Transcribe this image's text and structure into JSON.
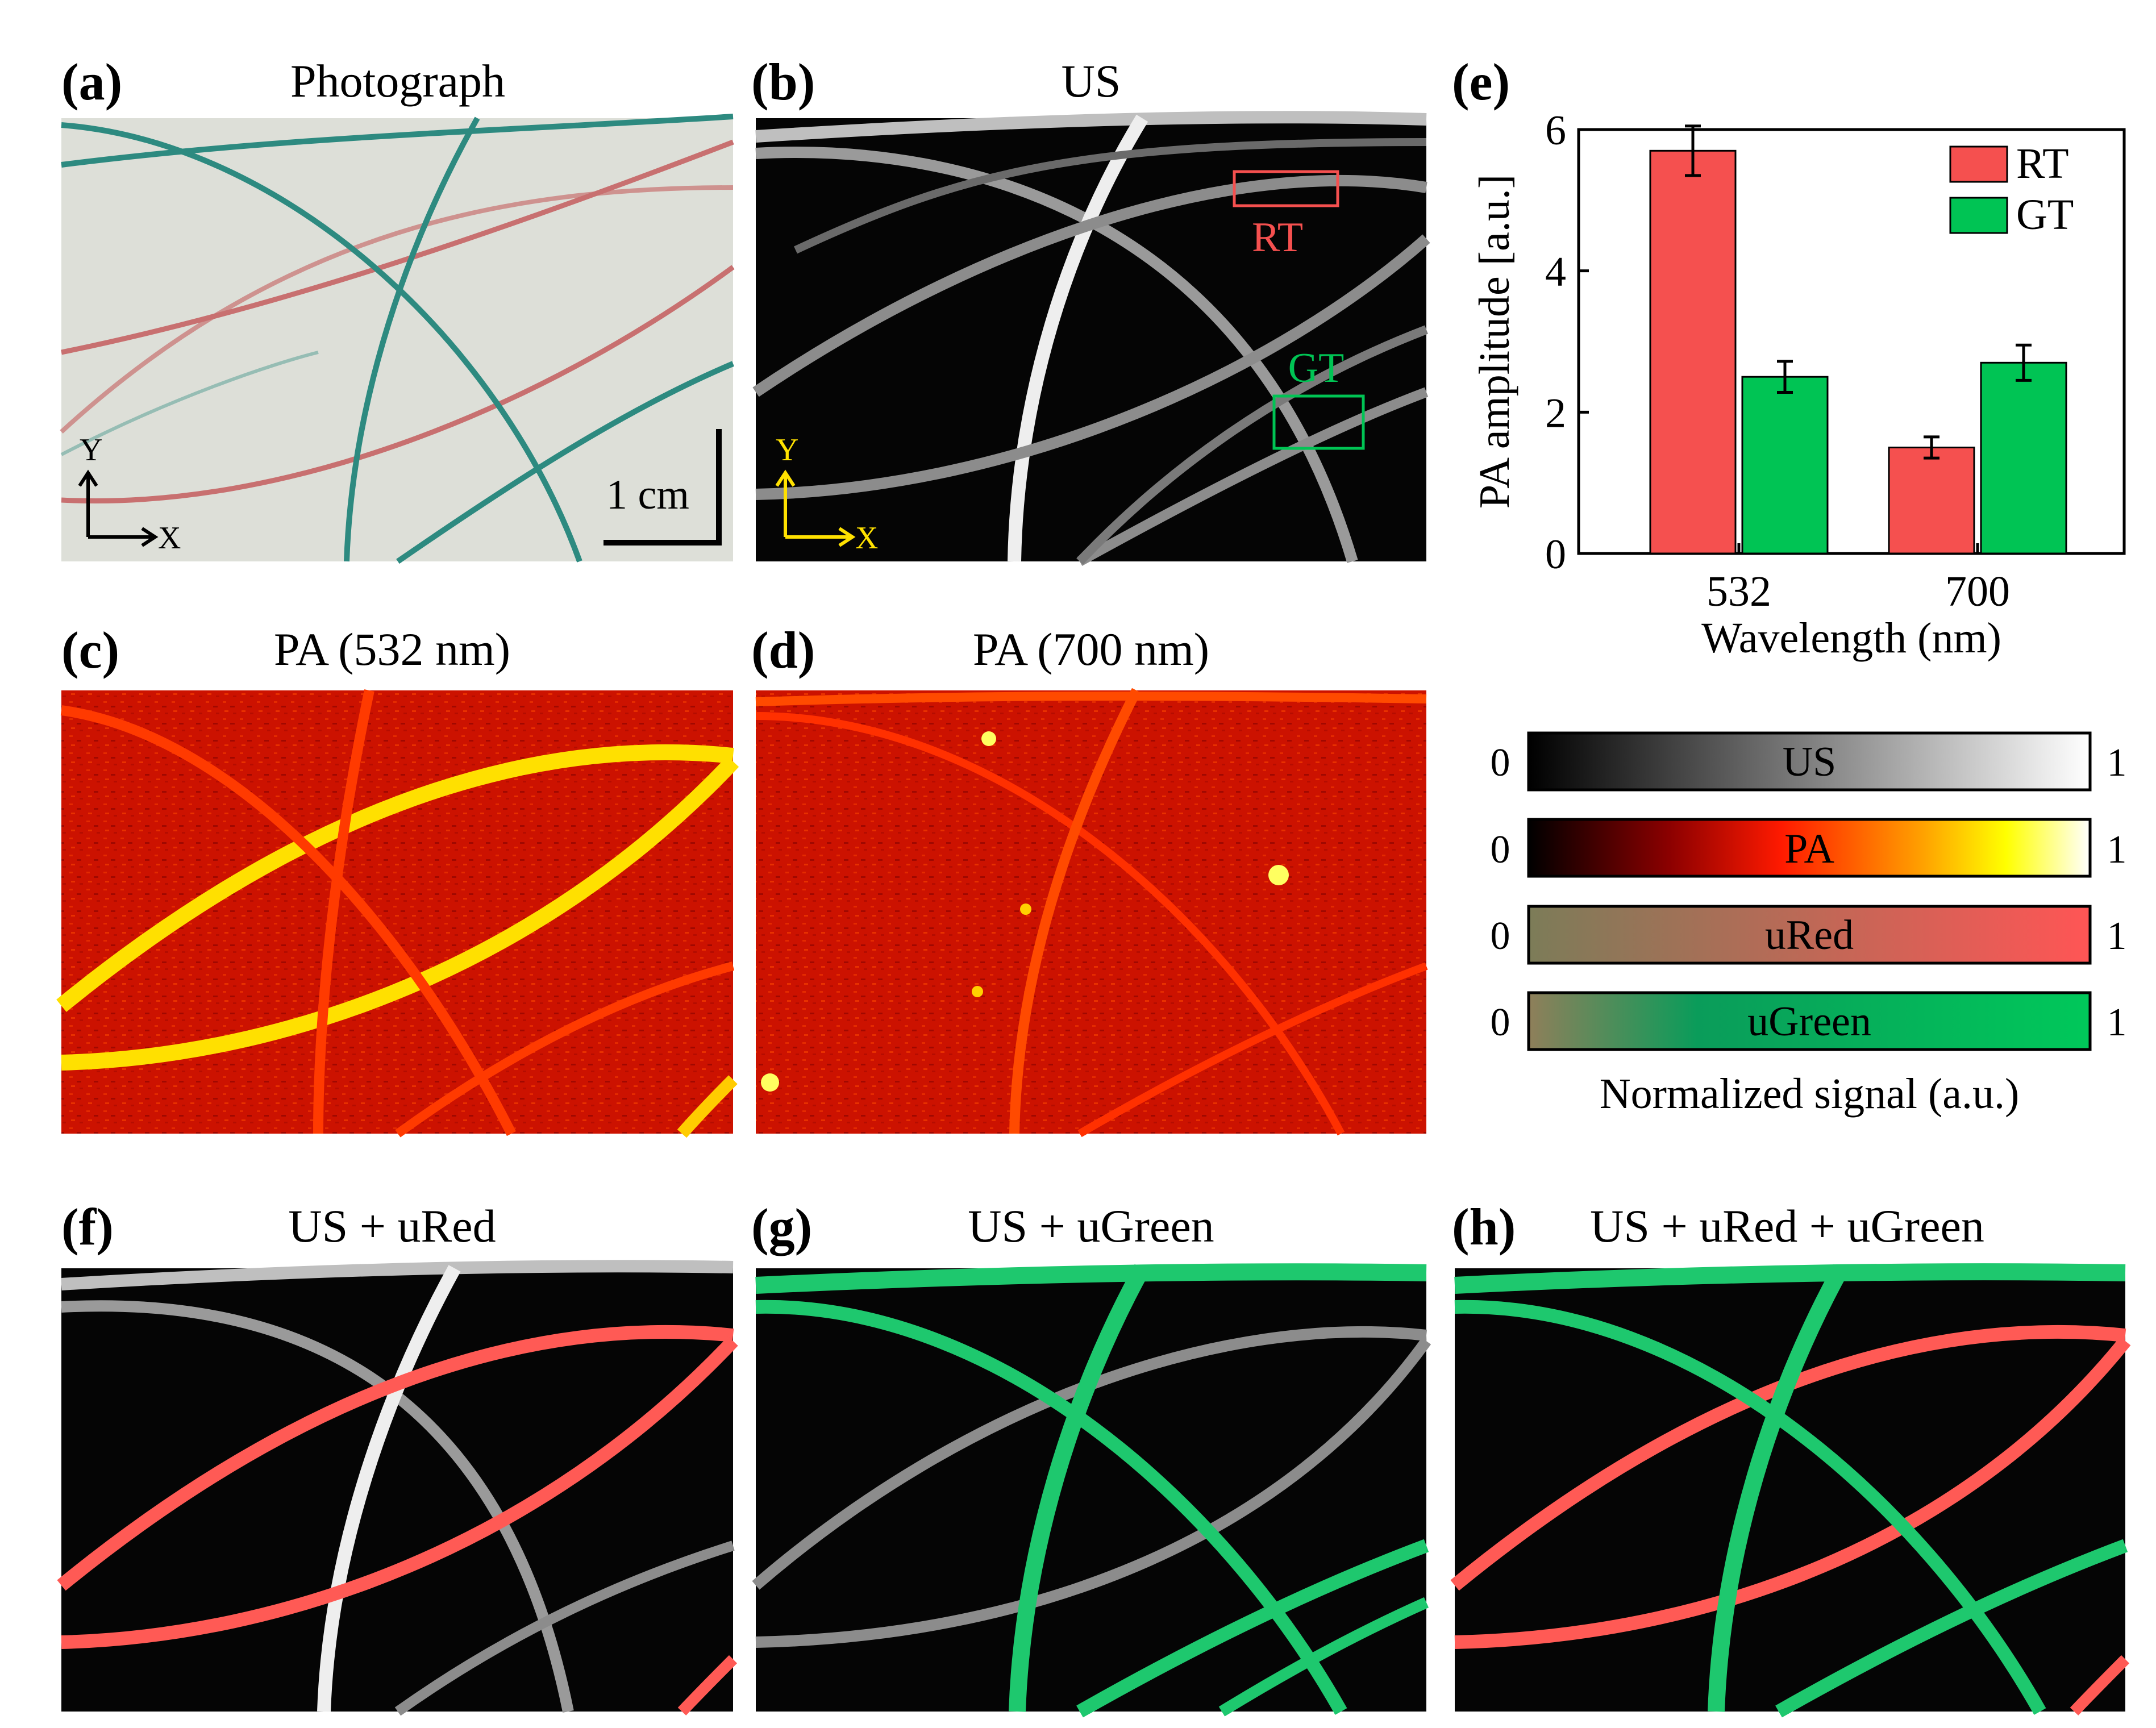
{
  "panels": {
    "a": {
      "letter": "(a)",
      "title": "Photograph",
      "axis_y": "Y",
      "axis_x": "X",
      "scale_bar": "1 cm"
    },
    "b": {
      "letter": "(b)",
      "title": "US",
      "roi_rt": "RT",
      "roi_gt": "GT",
      "axis_y": "Y",
      "axis_x": "X"
    },
    "c": {
      "letter": "(c)",
      "title": "PA (532 nm)"
    },
    "d": {
      "letter": "(d)",
      "title": "PA (700 nm)"
    },
    "e": {
      "letter": "(e)"
    },
    "f": {
      "letter": "(f)",
      "title": "US + uRed"
    },
    "g": {
      "letter": "(g)",
      "title": "US + uGreen"
    },
    "h": {
      "letter": "(h)",
      "title": "US + uRed + uGreen"
    }
  },
  "colorbars": {
    "caption": "Normalized signal (a.u.)",
    "items": [
      {
        "label": "US",
        "min": "0",
        "max": "1"
      },
      {
        "label": "PA",
        "min": "0",
        "max": "1"
      },
      {
        "label": "uRed",
        "min": "0",
        "max": "1"
      },
      {
        "label": "uGreen",
        "min": "0",
        "max": "1"
      }
    ]
  },
  "colors": {
    "rt": "#f5504f",
    "gt": "#00c454",
    "overlay_red": "#ff5a55",
    "overlay_green": "#1ec86e"
  },
  "chart_data": {
    "type": "bar",
    "title": "",
    "xlabel": "Wavelength (nm)",
    "ylabel": "PA amplitude [a.u.]",
    "categories": [
      "532",
      "700"
    ],
    "ylim": [
      0,
      6
    ],
    "yticks": [
      "0",
      "2",
      "4",
      "6"
    ],
    "legend": "top-right",
    "series": [
      {
        "name": "RT",
        "values": [
          5.7,
          1.5
        ],
        "errors": [
          0.35,
          0.15
        ]
      },
      {
        "name": "GT",
        "values": [
          2.5,
          2.7
        ],
        "errors": [
          0.22,
          0.25
        ]
      }
    ]
  }
}
